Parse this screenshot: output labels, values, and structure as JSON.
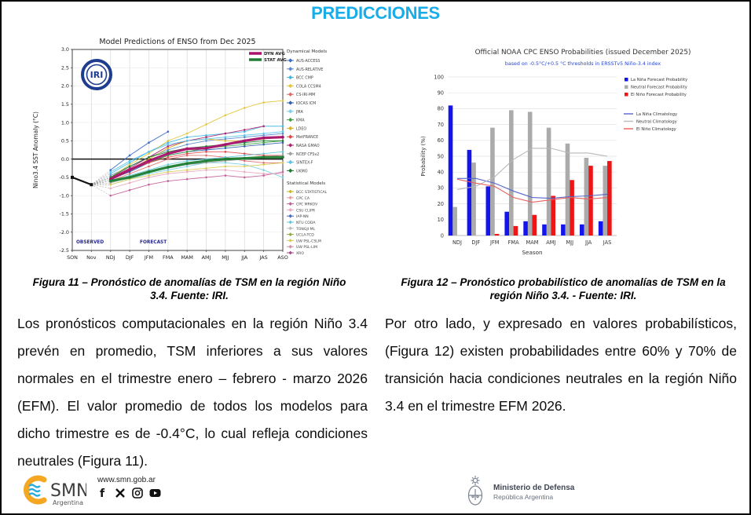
{
  "title": "PREDICCIONES",
  "accent_color": "#18ade8",
  "fig11": {
    "caption": "Figura 11 – Pronóstico de anomalías de TSM en la región Niño 3.4. Fuente: IRI."
  },
  "fig12": {
    "caption": "Figura 12 – Pronóstico probabilístico de anomalías de TSM en la región Niño 3.4. - Fuente: IRI."
  },
  "paragraphs": {
    "left": "Los pronósticos computacionales en la región Niño 3.4 prevén en promedio, TSM inferiores a sus valores normales en el trimestre enero – febrero - marzo 2026 (EFM). El valor promedio de todos los modelos para dicho trimestre es de -0.4°C, lo cual refleja condiciones neutrales (Figura 11).",
    "right": "Por otro lado, y expresado en valores probabilísticos, (Figura 12) existen probabilidades entre 60% y 70% de transición hacia condiciones neutrales en la región Niño 3.4 en el trimestre EFM 2026."
  },
  "footer": {
    "smn_name": "SMN",
    "smn_sub": "Argentina",
    "url": "www.smn.gob.ar",
    "social_icons": [
      "facebook",
      "x",
      "instagram",
      "youtube"
    ],
    "ministry_name": "Ministerio de Defensa",
    "ministry_sub": "República Argentina"
  },
  "chart_data": [
    {
      "type": "line",
      "title": "Model Predictions of ENSO from Dec 2025",
      "ylabel": "Nino3.4 SST Anomaly (°C)",
      "ylim": [
        -2.5,
        3.0
      ],
      "yticks": [
        3.0,
        2.5,
        2.0,
        1.5,
        1.0,
        0.5,
        0.0,
        -0.5,
        -1.0,
        -1.5,
        -2.0,
        -2.5
      ],
      "categories": [
        "SON",
        "Nov",
        "NDJ",
        "DJF",
        "JFM",
        "FMA",
        "MAM",
        "AMJ",
        "MJJ",
        "JJA",
        "JAS",
        "ASO"
      ],
      "observed": {
        "label": "OBSERVED",
        "x": [
          0,
          1
        ],
        "values": [
          -0.5,
          -0.7
        ]
      },
      "forecast_label": "FORECAST",
      "logo": "IRI",
      "avg_series": [
        {
          "name": "DYN AVG",
          "color": "#a8126c",
          "values": [
            -0.55,
            -0.3,
            -0.05,
            0.15,
            0.28,
            0.3,
            0.4,
            0.5,
            0.58,
            0.6
          ]
        },
        {
          "name": "STAT AVG",
          "color": "#1e7d32",
          "values": [
            -0.6,
            -0.5,
            -0.35,
            -0.22,
            -0.12,
            -0.05,
            0.0,
            0.02,
            0.05,
            0.05
          ]
        }
      ],
      "model_series": [
        {
          "name": "AUS-ACCESS",
          "color": "#3b6cc7",
          "values": [
            -0.3,
            0.1,
            0.45,
            0.75,
            null,
            null,
            null,
            null,
            null,
            null
          ]
        },
        {
          "name": "AUS-RELATIVE",
          "color": "#5b8bd0",
          "values": [
            -0.45,
            -0.2,
            0.05,
            0.25,
            0.4,
            0.5,
            0.55,
            0.6,
            0.65,
            0.7
          ]
        },
        {
          "name": "BCC CMP",
          "color": "#45b8e0",
          "values": [
            -0.4,
            -0.1,
            0.2,
            0.45,
            0.6,
            0.65,
            0.7,
            0.75,
            0.9,
            0.9
          ]
        },
        {
          "name": "COLA CCSM4",
          "color": "#e3c63a",
          "values": [
            -0.5,
            -0.15,
            0.15,
            0.5,
            0.7,
            0.95,
            1.2,
            1.4,
            1.55,
            1.6
          ]
        },
        {
          "name": "CS-IRI-MM",
          "color": "#e06c6c",
          "values": [
            -0.6,
            -0.4,
            -0.2,
            0.0,
            0.1,
            0.1,
            0.05,
            -0.05,
            -0.1,
            -0.1
          ]
        },
        {
          "name": "IOCAS ICM",
          "color": "#2f5fae",
          "values": [
            -0.55,
            -0.35,
            -0.1,
            0.1,
            0.2,
            0.25,
            0.3,
            0.35,
            0.4,
            0.45
          ]
        },
        {
          "name": "JMA",
          "color": "#7ed0e6",
          "values": [
            -0.7,
            -0.55,
            -0.4,
            -0.3,
            -0.2,
            -0.1,
            -0.1,
            -0.15,
            -0.3,
            -0.5
          ]
        },
        {
          "name": "KMA",
          "color": "#3da23d",
          "values": [
            -0.55,
            -0.3,
            -0.1,
            0.1,
            0.2,
            0.3,
            0.35,
            0.4,
            0.45,
            0.5
          ]
        },
        {
          "name": "LDEO",
          "color": "#d9b425",
          "values": [
            -0.55,
            -0.3,
            0.0,
            0.3,
            0.5,
            0.55,
            0.5,
            0.5,
            0.55,
            0.6
          ]
        },
        {
          "name": "MetFRANCE",
          "color": "#e04848",
          "values": [
            -0.5,
            -0.3,
            -0.1,
            0.05,
            0.15,
            0.2,
            0.2,
            0.15,
            0.1,
            0.1
          ]
        },
        {
          "name": "NASA GMAO",
          "color": "#b0256e",
          "values": [
            -0.5,
            -0.25,
            0.05,
            0.35,
            0.5,
            0.6,
            0.7,
            0.8,
            0.9,
            null
          ]
        },
        {
          "name": "NCEP CFSv2",
          "color": "#a0a0a0",
          "values": [
            -0.65,
            -0.5,
            -0.35,
            -0.25,
            -0.15,
            -0.1,
            -0.05,
            0.0,
            0.05,
            0.1
          ]
        },
        {
          "name": "SINTEX-F",
          "color": "#57c3ea",
          "values": [
            -0.35,
            -0.05,
            0.2,
            0.4,
            0.5,
            0.55,
            0.6,
            0.65,
            0.7,
            0.75
          ]
        },
        {
          "name": "UKMO",
          "color": "#1e7d32",
          "values": [
            -0.5,
            -0.2,
            0.05,
            0.2,
            0.3,
            0.35,
            0.4,
            0.45,
            0.5,
            0.5
          ]
        },
        {
          "name": "CPC MRKOV",
          "color": "#c2619a",
          "values": [
            -1.0,
            -0.85,
            -0.7,
            -0.6,
            -0.55,
            -0.5,
            -0.45,
            -0.5,
            -0.45,
            -0.35
          ]
        },
        {
          "name": "CSU CLIPR",
          "color": "#e8a8c0",
          "values": [
            -0.8,
            -0.65,
            -0.5,
            -0.4,
            -0.35,
            -0.3,
            -0.3,
            -0.35,
            -0.4,
            -0.4
          ]
        },
        {
          "name": "NTU CODA",
          "color": "#64c8dc",
          "values": [
            -0.6,
            -0.45,
            -0.3,
            -0.15,
            -0.05,
            0.0,
            0.05,
            0.1,
            0.15,
            0.2
          ]
        },
        {
          "name": "UW PSL-CSLM",
          "color": "#d9cc55",
          "values": [
            -0.7,
            -0.55,
            -0.45,
            -0.35,
            -0.3,
            -0.25,
            -0.2,
            -0.2,
            -0.15,
            -0.1
          ]
        }
      ],
      "legend": {
        "dynamical_title": "Dynamical Models",
        "dynamical": [
          {
            "name": "AUS-ACCESS",
            "color": "#3b6cc7"
          },
          {
            "name": "AUS-RELATIVE",
            "color": "#5b8bd0"
          },
          {
            "name": "BCC CMP",
            "color": "#45b8e0"
          },
          {
            "name": "COLA CCSM4",
            "color": "#e3c63a"
          },
          {
            "name": "CS-IRI-MM",
            "color": "#e06c6c"
          },
          {
            "name": "IOCAS ICM",
            "color": "#2f5fae"
          },
          {
            "name": "JMA",
            "color": "#7ed0e6"
          },
          {
            "name": "KMA",
            "color": "#3da23d"
          },
          {
            "name": "LDEO",
            "color": "#d9b425"
          },
          {
            "name": "MetFRANCE",
            "color": "#e04848"
          },
          {
            "name": "NASA GMAO",
            "color": "#b0256e"
          },
          {
            "name": "NCEP CFSv2",
            "color": "#a0a0a0"
          },
          {
            "name": "SINTEX-F",
            "color": "#57c3ea"
          },
          {
            "name": "UKMO",
            "color": "#1e7d32"
          }
        ],
        "statistical_title": "Statistical Models",
        "statistical": [
          {
            "name": "BCC STATISTICAL",
            "color": "#c9b922"
          },
          {
            "name": "CPC CA",
            "color": "#e89f9f"
          },
          {
            "name": "CPC MRKOV",
            "color": "#c2619a"
          },
          {
            "name": "CSU CLIPR",
            "color": "#e8a8c0"
          },
          {
            "name": "IAP-NN",
            "color": "#4a6fc0"
          },
          {
            "name": "NTU CODA",
            "color": "#64c8dc"
          },
          {
            "name": "TONGJI ML",
            "color": "#bdbdbd"
          },
          {
            "name": "UCLA-TCD",
            "color": "#8fae3c"
          },
          {
            "name": "UW PSL-CSLM",
            "color": "#d9cc55"
          },
          {
            "name": "UW PSL-LIM",
            "color": "#cf93a8"
          },
          {
            "name": "XRO",
            "color": "#a84a90"
          }
        ]
      }
    },
    {
      "type": "bar",
      "title": "Official NOAA CPC ENSO Probabilities (issued December 2025)",
      "subtitle": "based on -0.5°C/+0.5 °C thresholds in ERSSTv5 Niño-3.4 index",
      "subtitle_color": "#2a46c8",
      "ylabel": "Probability (%)",
      "xlabel": "Season",
      "ylim": [
        0,
        100
      ],
      "yticks": [
        0,
        10,
        20,
        30,
        40,
        50,
        60,
        70,
        80,
        90,
        100
      ],
      "categories": [
        "NDJ",
        "DJF",
        "JFM",
        "FMA",
        "MAM",
        "AMJ",
        "MJJ",
        "JJA",
        "JAS"
      ],
      "bar_series": [
        {
          "name": "La Niña Forecast Probability",
          "color": "#1414ec",
          "values": [
            82,
            54,
            31,
            15,
            9,
            7,
            7,
            7,
            9
          ]
        },
        {
          "name": "Neutral Forecast Probability",
          "color": "#ababab",
          "values": [
            18,
            46,
            68,
            79,
            78,
            68,
            58,
            49,
            44
          ]
        },
        {
          "name": "El Niño Forecast Probability",
          "color": "#ed1515",
          "values": [
            0,
            0,
            1,
            6,
            13,
            25,
            35,
            44,
            47
          ]
        }
      ],
      "line_series": [
        {
          "name": "La Niña Climatology",
          "color": "#5566cc",
          "values": [
            36,
            36,
            33,
            28,
            24,
            23.5,
            24.5,
            25,
            26
          ]
        },
        {
          "name": "Neutral Climatology",
          "color": "#b8b8b8",
          "values": [
            29,
            31,
            37,
            48,
            55,
            55,
            52,
            52,
            50
          ]
        },
        {
          "name": "El Niño Climatology",
          "color": "#e86060",
          "values": [
            35.5,
            33,
            31,
            24,
            21,
            22.5,
            24,
            23,
            24
          ]
        }
      ]
    }
  ]
}
